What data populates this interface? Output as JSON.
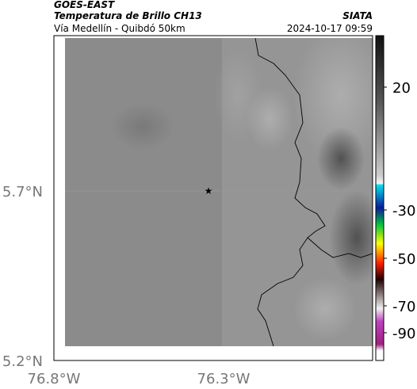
{
  "header": {
    "source": "GOES-EAST",
    "title": "Temperatura de Brillo CH13",
    "subtitle": "Vía Medellín - Quibdó 50km",
    "agency": "SIATA",
    "timestamp": "2024-10-17 09:59"
  },
  "axes": {
    "lat_labels": [
      "5.7°N",
      "5.2°N"
    ],
    "lon_labels": [
      "76.8°W",
      "76.3°W"
    ]
  },
  "colorbar": {
    "tick_labels": [
      "20",
      "-30",
      "-50",
      "-70",
      "-90"
    ]
  }
}
